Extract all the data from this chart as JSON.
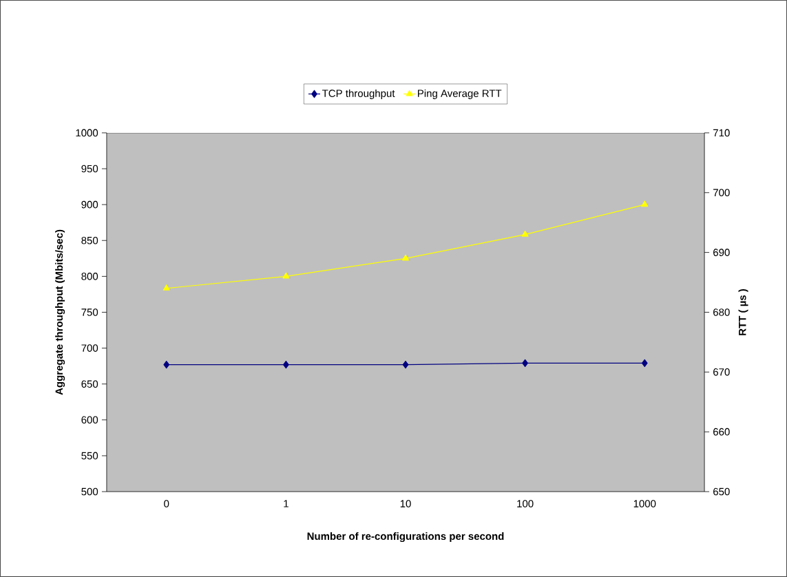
{
  "chart_data": {
    "type": "line",
    "xlabel": "Number of re-configurations per second",
    "ylabel": "Aggregate throughput (Mbits/sec)",
    "y2label": "RTT ( µs )",
    "categories": [
      "0",
      "1",
      "10",
      "100",
      "1000"
    ],
    "series": [
      {
        "name": "TCP throughput",
        "color": "#000080",
        "marker": "diamond",
        "values": [
          677,
          677,
          677,
          679,
          679
        ]
      },
      {
        "name": "Ping Average RTT",
        "color": "#ffff00",
        "marker": "triangle",
        "axis": "y2",
        "values": [
          684,
          686,
          689,
          693,
          698
        ]
      }
    ],
    "ylim": [
      500,
      1000
    ],
    "yticks": [
      500,
      550,
      600,
      650,
      700,
      750,
      800,
      850,
      900,
      950,
      1000
    ],
    "y2lim": [
      650,
      710
    ],
    "y2ticks": [
      650,
      660,
      670,
      680,
      690,
      700,
      710
    ],
    "legend": "top",
    "grid": false
  }
}
